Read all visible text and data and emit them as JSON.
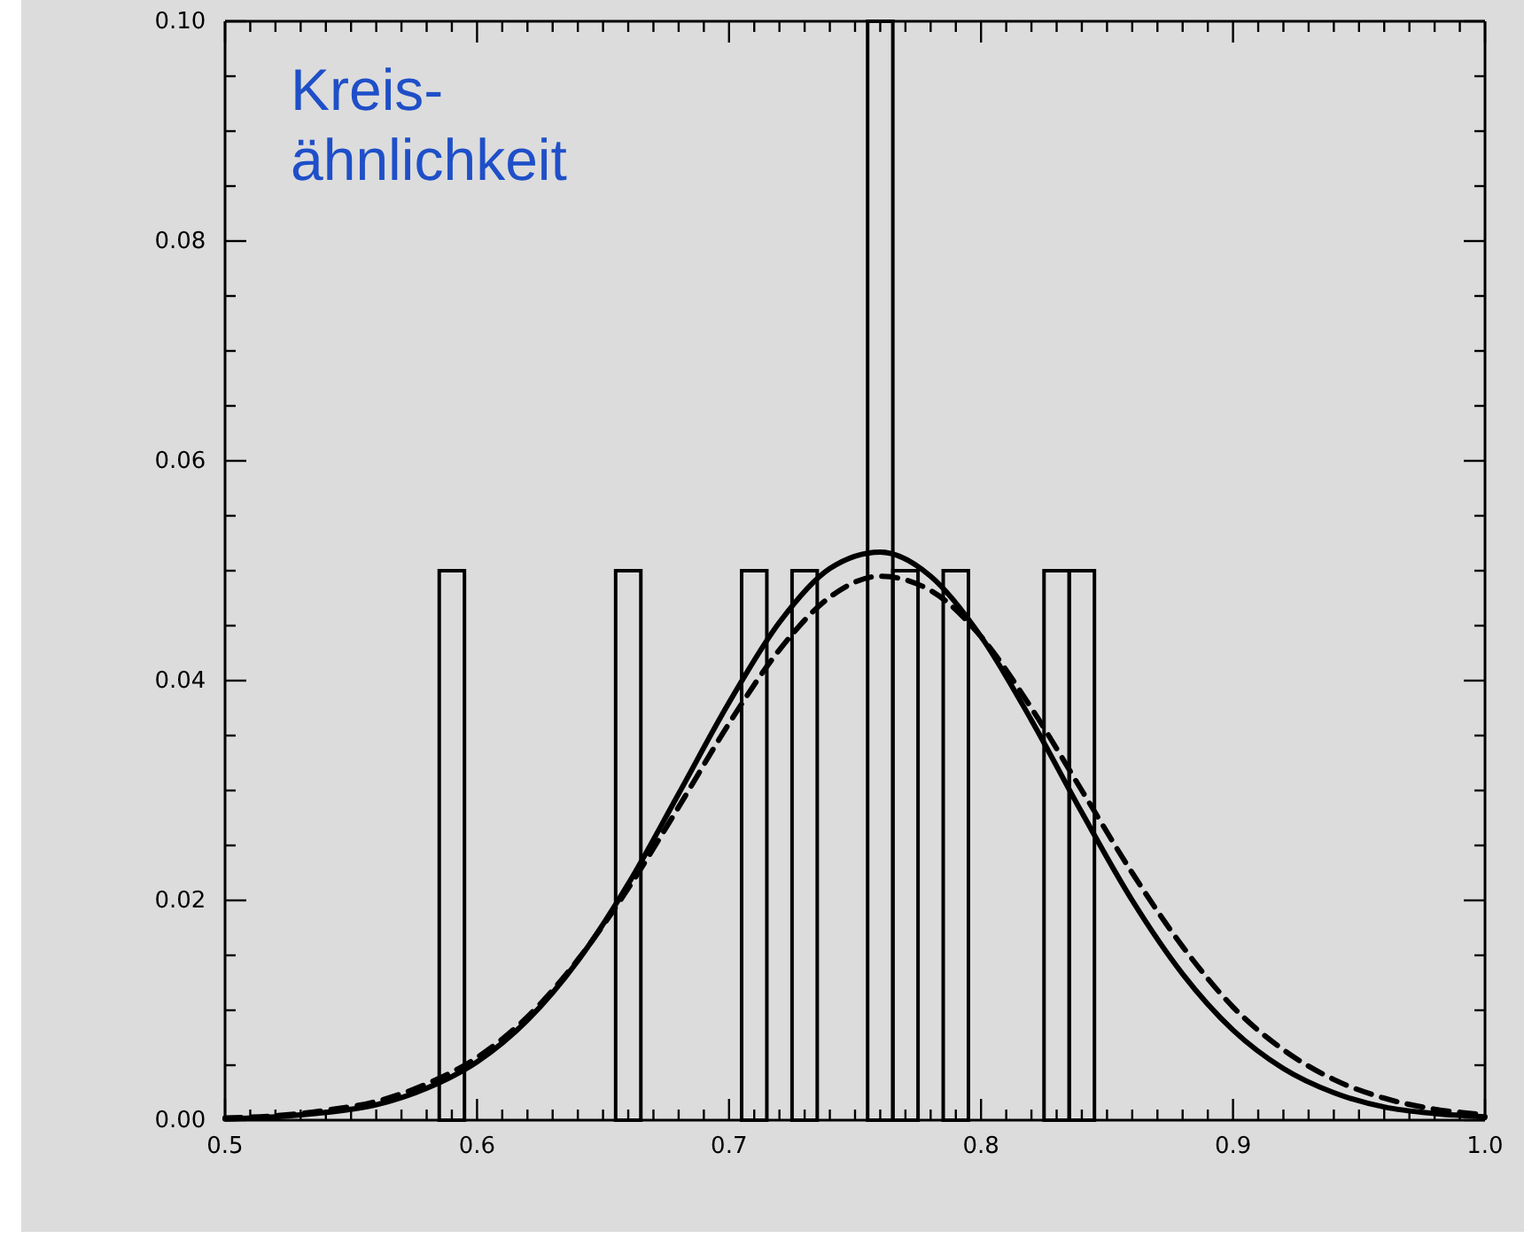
{
  "chart_data": {
    "type": "histogram",
    "bins": [
      0.585,
      0.595,
      0.605,
      0.615,
      0.625,
      0.635,
      0.645,
      0.655,
      0.665,
      0.675,
      0.685,
      0.695,
      0.705,
      0.715,
      0.725,
      0.735,
      0.745,
      0.755,
      0.765,
      0.775,
      0.785,
      0.795,
      0.805,
      0.815,
      0.825,
      0.835,
      0.845
    ],
    "values": [
      0.05,
      0,
      0,
      0,
      0,
      0,
      0,
      0.05,
      0,
      0,
      0,
      0,
      0.05,
      0,
      0.05,
      0,
      0,
      0.1,
      0.05,
      0,
      0.05,
      0,
      0,
      0,
      0.05,
      0.05
    ],
    "color": "#000000",
    "series": [
      {
        "type": "line",
        "line_style": "solid",
        "color": "#000000",
        "x": [
          0.5,
          0.52,
          0.54,
          0.56,
          0.58,
          0.6,
          0.62,
          0.64,
          0.66,
          0.68,
          0.7,
          0.72,
          0.74,
          0.76,
          0.78,
          0.8,
          0.82,
          0.84,
          0.86,
          0.88,
          0.9,
          0.92,
          0.94,
          0.96,
          0.98,
          1.0
        ],
        "values": [
          0.0001,
          0.0003,
          0.0007,
          0.0014,
          0.0029,
          0.0053,
          0.0091,
          0.0145,
          0.0215,
          0.0297,
          0.038,
          0.0453,
          0.0502,
          0.0517,
          0.0495,
          0.044,
          0.0364,
          0.028,
          0.02,
          0.0133,
          0.0082,
          0.0047,
          0.0025,
          0.0012,
          0.0006,
          0.0003
        ]
      },
      {
        "type": "line",
        "line_style": "dashed",
        "color": "#000000",
        "x": [
          0.5,
          0.52,
          0.54,
          0.56,
          0.58,
          0.6,
          0.62,
          0.64,
          0.66,
          0.68,
          0.7,
          0.72,
          0.74,
          0.76,
          0.78,
          0.8,
          0.82,
          0.84,
          0.86,
          0.88,
          0.9,
          0.92,
          0.94,
          0.96,
          0.98,
          1.0
        ],
        "values": [
          0.0002,
          0.0004,
          0.0009,
          0.0017,
          0.0033,
          0.0057,
          0.0094,
          0.0146,
          0.0211,
          0.0285,
          0.0361,
          0.0428,
          0.0476,
          0.0495,
          0.0482,
          0.044,
          0.0375,
          0.03,
          0.0225,
          0.0158,
          0.0103,
          0.0064,
          0.0037,
          0.002,
          0.001,
          0.0005
        ]
      }
    ],
    "xlim": [
      0.5,
      1.0
    ],
    "xticks": [
      {
        "value": 0.5,
        "label": "0.5"
      },
      {
        "value": 0.51,
        "label": null
      },
      {
        "value": 0.52,
        "label": null
      },
      {
        "value": 0.53,
        "label": null
      },
      {
        "value": 0.54,
        "label": null
      },
      {
        "value": 0.55,
        "label": null
      },
      {
        "value": 0.56,
        "label": null
      },
      {
        "value": 0.57,
        "label": null
      },
      {
        "value": 0.58,
        "label": null
      },
      {
        "value": 0.59,
        "label": null
      },
      {
        "value": 0.6,
        "label": "0.6"
      },
      {
        "value": 0.61,
        "label": null
      },
      {
        "value": 0.62,
        "label": null
      },
      {
        "value": 0.63,
        "label": null
      },
      {
        "value": 0.64,
        "label": null
      },
      {
        "value": 0.65,
        "label": null
      },
      {
        "value": 0.66,
        "label": null
      },
      {
        "value": 0.67,
        "label": null
      },
      {
        "value": 0.68,
        "label": null
      },
      {
        "value": 0.69,
        "label": null
      },
      {
        "value": 0.7,
        "label": "0.7"
      },
      {
        "value": 0.71,
        "label": null
      },
      {
        "value": 0.72,
        "label": null
      },
      {
        "value": 0.73,
        "label": null
      },
      {
        "value": 0.74,
        "label": null
      },
      {
        "value": 0.75,
        "label": null
      },
      {
        "value": 0.76,
        "label": null
      },
      {
        "value": 0.77,
        "label": null
      },
      {
        "value": 0.78,
        "label": null
      },
      {
        "value": 0.79,
        "label": null
      },
      {
        "value": 0.8,
        "label": "0.8"
      },
      {
        "value": 0.81,
        "label": null
      },
      {
        "value": 0.82,
        "label": null
      },
      {
        "value": 0.83,
        "label": null
      },
      {
        "value": 0.84,
        "label": null
      },
      {
        "value": 0.85,
        "label": null
      },
      {
        "value": 0.86,
        "label": null
      },
      {
        "value": 0.87,
        "label": null
      },
      {
        "value": 0.88,
        "label": null
      },
      {
        "value": 0.89,
        "label": null
      },
      {
        "value": 0.9,
        "label": "0.9"
      },
      {
        "value": 0.91,
        "label": null
      },
      {
        "value": 0.92,
        "label": null
      },
      {
        "value": 0.93,
        "label": null
      },
      {
        "value": 0.94,
        "label": null
      },
      {
        "value": 0.95,
        "label": null
      },
      {
        "value": 0.96,
        "label": null
      },
      {
        "value": 0.97,
        "label": null
      },
      {
        "value": 0.98,
        "label": null
      },
      {
        "value": 0.99,
        "label": null
      },
      {
        "value": 1.0,
        "label": "1.0"
      }
    ],
    "ylim": [
      0,
      0.1
    ],
    "yticks": [
      {
        "value": 0,
        "label": "0.00"
      },
      {
        "value": 0.005,
        "label": null
      },
      {
        "value": 0.01,
        "label": null
      },
      {
        "value": 0.015,
        "label": null
      },
      {
        "value": 0.02,
        "label": "0.02"
      },
      {
        "value": 0.025,
        "label": null
      },
      {
        "value": 0.03,
        "label": null
      },
      {
        "value": 0.035,
        "label": null
      },
      {
        "value": 0.04,
        "label": "0.04"
      },
      {
        "value": 0.045,
        "label": null
      },
      {
        "value": 0.05,
        "label": null
      },
      {
        "value": 0.055,
        "label": null
      },
      {
        "value": 0.06,
        "label": "0.06"
      },
      {
        "value": 0.065,
        "label": null
      },
      {
        "value": 0.07,
        "label": null
      },
      {
        "value": 0.075,
        "label": null
      },
      {
        "value": 0.08,
        "label": "0.08"
      },
      {
        "value": 0.085,
        "label": null
      },
      {
        "value": 0.09,
        "label": null
      },
      {
        "value": 0.095,
        "label": null
      },
      {
        "value": 0.1,
        "label": "0.10"
      }
    ],
    "annotations": [
      "Kreis-\nähnlichkeit"
    ],
    "grid": false
  }
}
